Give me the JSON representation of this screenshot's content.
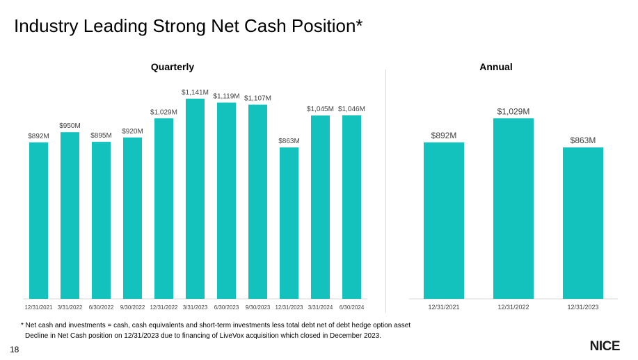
{
  "page": {
    "title": "Industry Leading Strong Net Cash Position*",
    "page_number": "18",
    "logo_text": "NICE"
  },
  "footnotes": [
    "* Net cash and investments = cash, cash equivalents and short-term investments less total debt net of debt hedge option asset",
    "Decline in Net Cash position on 12/31/2023 due to financing of LiveVox acquisition which closed in December 2023."
  ],
  "colors": {
    "bar": "#13c1bd",
    "divider": "#d9d9d9"
  },
  "chart_data": [
    {
      "type": "bar",
      "title": "Quarterly",
      "unit": "$M",
      "categories": [
        "12/31/2021",
        "3/31/2022",
        "6/30/2022",
        "9/30/2022",
        "12/31/2022",
        "3/31/2023",
        "6/30/2023",
        "9/30/2023",
        "12/31/2023",
        "3/31/2024",
        "6/30/2024"
      ],
      "values": [
        892,
        950,
        895,
        920,
        1029,
        1141,
        1119,
        1107,
        863,
        1045,
        1046
      ],
      "labels": [
        "$892M",
        "$950M",
        "$895M",
        "$920M",
        "$1,029M",
        "$1,141M",
        "$1,119M",
        "$1,107M",
        "$863M",
        "$1,045M",
        "$1,046M"
      ],
      "ylim": [
        0,
        1141
      ],
      "xlabel": "",
      "ylabel": "",
      "grid": false
    },
    {
      "type": "bar",
      "title": "Annual",
      "unit": "$M",
      "categories": [
        "12/31/2021",
        "12/31/2022",
        "12/31/2023"
      ],
      "values": [
        892,
        1029,
        863
      ],
      "labels": [
        "$892M",
        "$1,029M",
        "$863M"
      ],
      "ylim": [
        0,
        1141
      ],
      "xlabel": "",
      "ylabel": "",
      "grid": false
    }
  ]
}
